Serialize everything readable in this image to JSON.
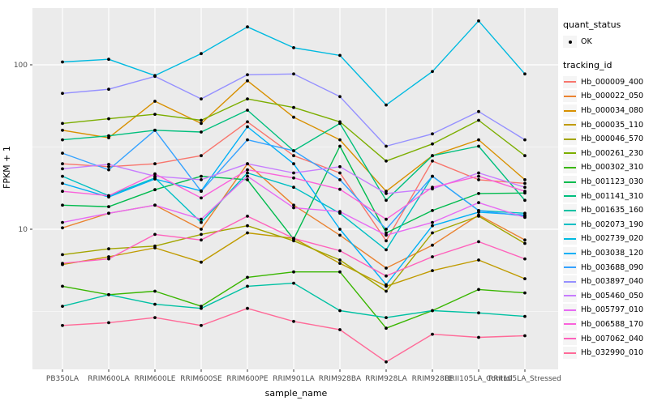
{
  "chart_data": {
    "type": "line",
    "title": "",
    "xlabel": "sample_name",
    "ylabel": "FPKM + 1",
    "yscale": "log10",
    "ylim": [
      1.42,
      221
    ],
    "ytick_values": [
      100,
      10
    ],
    "ytick_labels": [
      "100",
      "10"
    ],
    "grid": true,
    "legend_position": "right",
    "panel_bg": "#EBEBEB",
    "grid_color": "#FFFFFF",
    "point_color": "#000000",
    "tick_text_color": "#4D4D4D",
    "categories": [
      "PB350LA",
      "RRIM600LA",
      "RRIM600LE",
      "RRIM600SE",
      "RRIM600PE",
      "RRIM901LA",
      "RRIM928BA",
      "RRIM928LA",
      "RRIM928LE",
      "RRII105LA_Control",
      "RRII105LA_Stressed"
    ],
    "legends": {
      "quant": {
        "title": "quant_status",
        "items": [
          {
            "label": "OK",
            "marker": "point"
          }
        ]
      },
      "tracking": {
        "title": "tracking_id"
      }
    },
    "series": [
      {
        "name": "Hb_000009_400",
        "color": "#F8766D",
        "values": [
          25,
          24,
          25,
          28,
          45,
          28,
          22,
          8.5,
          26,
          20,
          19
        ]
      },
      {
        "name": "Hb_000022_050",
        "color": "#EA8331",
        "values": [
          10.2,
          12.5,
          14,
          10,
          25,
          14,
          9.2,
          5.8,
          8,
          12.2,
          8.6
        ]
      },
      {
        "name": "Hb_000034_080",
        "color": "#D89000",
        "values": [
          40,
          36,
          60,
          44,
          80,
          48,
          35,
          17,
          28,
          35,
          20
        ]
      },
      {
        "name": "Hb_000035_110",
        "color": "#C09B00",
        "values": [
          6.1,
          6.8,
          7.7,
          6.3,
          9.5,
          8.8,
          6.2,
          4.5,
          5.6,
          6.5,
          5.0
        ]
      },
      {
        "name": "Hb_000046_570",
        "color": "#A3A500",
        "values": [
          7.0,
          7.6,
          7.9,
          9.3,
          10.5,
          8.5,
          6.5,
          4.2,
          9.5,
          12,
          8.2
        ]
      },
      {
        "name": "Hb_000261_230",
        "color": "#7CAE00",
        "values": [
          44,
          47,
          50,
          46,
          62,
          55,
          45,
          26,
          33,
          46,
          28
        ]
      },
      {
        "name": "Hb_000302_310",
        "color": "#39B600",
        "values": [
          4.5,
          4.0,
          4.2,
          3.4,
          5.1,
          5.5,
          5.5,
          2.5,
          3.2,
          4.3,
          4.1
        ]
      },
      {
        "name": "Hb_001123_030",
        "color": "#00BB4E",
        "values": [
          14,
          13.7,
          17.4,
          21,
          20,
          8.7,
          32,
          9.5,
          13,
          16.5,
          16.6
        ]
      },
      {
        "name": "Hb_001141_310",
        "color": "#00BF7D",
        "values": [
          35,
          37,
          40,
          39,
          53,
          30,
          44,
          15,
          28,
          32,
          15
        ]
      },
      {
        "name": "Hb_001635_160",
        "color": "#00C1A3",
        "values": [
          3.4,
          4.0,
          3.5,
          3.3,
          4.5,
          4.7,
          3.2,
          2.9,
          3.2,
          3.1,
          2.95
        ]
      },
      {
        "name": "Hb_002073_190",
        "color": "#00BFC4",
        "values": [
          21,
          16,
          20.5,
          11,
          22,
          18,
          12.5,
          7.5,
          21,
          13,
          12.5
        ]
      },
      {
        "name": "Hb_002739_020",
        "color": "#00BAE0",
        "values": [
          104,
          108,
          86,
          117,
          170,
          127,
          114,
          57,
          91,
          185,
          88
        ]
      },
      {
        "name": "Hb_003038_120",
        "color": "#00B0F6",
        "values": [
          19,
          15.7,
          20.2,
          17.1,
          42,
          25,
          10,
          4.6,
          10.5,
          12.7,
          12.2
        ]
      },
      {
        "name": "Hb_003688_090",
        "color": "#35A2FF",
        "values": [
          29,
          23,
          40,
          17,
          35,
          30,
          20,
          10,
          21,
          13,
          12
        ]
      },
      {
        "name": "Hb_003897_040",
        "color": "#9590FF",
        "values": [
          67,
          71,
          85,
          62,
          87,
          88,
          64,
          32,
          38,
          52,
          35
        ]
      },
      {
        "name": "Hb_005460_050",
        "color": "#C77CFF",
        "values": [
          23.3,
          24.8,
          21,
          20,
          25,
          22,
          24,
          16.5,
          17.6,
          22,
          18
        ]
      },
      {
        "name": "Hb_005797_010",
        "color": "#E76BF3",
        "values": [
          11,
          12.5,
          14,
          11.5,
          21,
          13.5,
          12.8,
          9.2,
          11,
          14.5,
          11.8
        ]
      },
      {
        "name": "Hb_006588_170",
        "color": "#FA62DB",
        "values": [
          17,
          16,
          21.7,
          15.5,
          23,
          20.5,
          17.5,
          11.5,
          18,
          21,
          17
        ]
      },
      {
        "name": "Hb_007062_040",
        "color": "#FF62BC",
        "values": [
          6.2,
          6.6,
          9.3,
          8.6,
          12,
          8.8,
          7.4,
          5.2,
          6.8,
          8.4,
          6.6
        ]
      },
      {
        "name": "Hb_032990_010",
        "color": "#FF6A98",
        "values": [
          2.6,
          2.7,
          2.9,
          2.6,
          3.3,
          2.75,
          2.45,
          1.56,
          2.3,
          2.2,
          2.25
        ]
      }
    ]
  }
}
